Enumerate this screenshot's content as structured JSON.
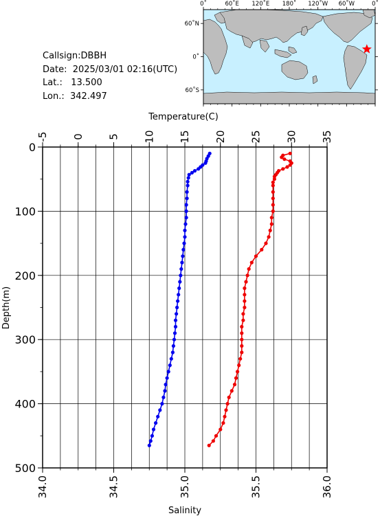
{
  "station": {
    "callsign_label": "Callsign:DBBH",
    "date_label": "Date:",
    "date_value": "2025/03/01 02:16(UTC)",
    "lat_label": "Lat.:",
    "lat_value": "13.500",
    "lon_label": "Lon.:",
    "lon_value": "342.497"
  },
  "map": {
    "lon_ticks": [
      "0˚",
      "60˚E",
      "120˚E",
      "180˚",
      "120˚W",
      "60˚W",
      "0˚"
    ],
    "lat_ticks": [
      "60˚N",
      "0˚",
      "60˚S"
    ],
    "ocean_color": "#c8f0ff",
    "land_color": "#bdbdbd",
    "marker": {
      "lon": 342.497,
      "lat": 13.5,
      "symbol": "star",
      "color": "#ff0000"
    }
  },
  "chart_data": {
    "type": "scatter",
    "ylabel": "Depth(m)",
    "ylim": [
      0,
      500
    ],
    "y_ticks": [
      "0",
      "100",
      "200",
      "300",
      "400",
      "500"
    ],
    "y_inverted": true,
    "top_axis": {
      "label": "Temperature(C)",
      "range": [
        -5,
        35
      ],
      "ticks": [
        "-5",
        "0",
        "5",
        "10",
        "15",
        "20",
        "25",
        "30",
        "35"
      ]
    },
    "bottom_axis": {
      "label": "Salinity",
      "range": [
        34.0,
        36.0
      ],
      "ticks": [
        "34.0",
        "34.5",
        "35.0",
        "35.5",
        "36.0"
      ]
    },
    "grid": true,
    "series": [
      {
        "axis": "temperature",
        "color": "#0000ee",
        "points": [
          [
            18.5,
            10
          ],
          [
            18.3,
            14
          ],
          [
            18.1,
            18
          ],
          [
            18.0,
            22
          ],
          [
            17.9,
            25
          ],
          [
            17.5,
            28
          ],
          [
            17.2,
            31
          ],
          [
            16.9,
            34
          ],
          [
            16.4,
            37
          ],
          [
            16.0,
            40
          ],
          [
            15.6,
            43
          ],
          [
            15.5,
            48
          ],
          [
            15.4,
            54
          ],
          [
            15.4,
            60
          ],
          [
            15.3,
            70
          ],
          [
            15.3,
            80
          ],
          [
            15.2,
            90
          ],
          [
            15.2,
            100
          ],
          [
            15.2,
            110
          ],
          [
            15.1,
            120
          ],
          [
            15.0,
            130
          ],
          [
            15.0,
            140
          ],
          [
            14.9,
            150
          ],
          [
            14.8,
            160
          ],
          [
            14.7,
            170
          ],
          [
            14.6,
            180
          ],
          [
            14.5,
            190
          ],
          [
            14.4,
            200
          ],
          [
            14.3,
            210
          ],
          [
            14.2,
            220
          ],
          [
            14.1,
            230
          ],
          [
            14.0,
            240
          ],
          [
            13.9,
            250
          ],
          [
            13.8,
            260
          ],
          [
            13.7,
            270
          ],
          [
            13.7,
            280
          ],
          [
            13.6,
            290
          ],
          [
            13.5,
            300
          ],
          [
            13.4,
            310
          ],
          [
            13.3,
            320
          ],
          [
            13.1,
            330
          ],
          [
            12.9,
            340
          ],
          [
            12.7,
            350
          ],
          [
            12.5,
            360
          ],
          [
            12.3,
            370
          ],
          [
            12.2,
            380
          ],
          [
            12.0,
            390
          ],
          [
            11.8,
            400
          ],
          [
            11.5,
            410
          ],
          [
            11.2,
            420
          ],
          [
            10.9,
            430
          ],
          [
            10.6,
            440
          ],
          [
            10.4,
            450
          ],
          [
            10.2,
            458
          ],
          [
            10.0,
            465
          ]
        ]
      },
      {
        "axis": "salinity",
        "color": "#ee0000",
        "points": [
          [
            35.74,
            10
          ],
          [
            35.69,
            13
          ],
          [
            35.68,
            16
          ],
          [
            35.7,
            19
          ],
          [
            35.74,
            22
          ],
          [
            35.75,
            25
          ],
          [
            35.74,
            28
          ],
          [
            35.72,
            31
          ],
          [
            35.69,
            34
          ],
          [
            35.66,
            37
          ],
          [
            35.65,
            40
          ],
          [
            35.64,
            43
          ],
          [
            35.63,
            46
          ],
          [
            35.63,
            50
          ],
          [
            35.62,
            55
          ],
          [
            35.62,
            60
          ],
          [
            35.62,
            70
          ],
          [
            35.62,
            80
          ],
          [
            35.62,
            90
          ],
          [
            35.62,
            100
          ],
          [
            35.61,
            110
          ],
          [
            35.61,
            120
          ],
          [
            35.6,
            130
          ],
          [
            35.59,
            140
          ],
          [
            35.57,
            150
          ],
          [
            35.54,
            160
          ],
          [
            35.5,
            170
          ],
          [
            35.47,
            180
          ],
          [
            35.45,
            190
          ],
          [
            35.44,
            200
          ],
          [
            35.43,
            210
          ],
          [
            35.42,
            220
          ],
          [
            35.42,
            230
          ],
          [
            35.42,
            240
          ],
          [
            35.42,
            250
          ],
          [
            35.41,
            260
          ],
          [
            35.41,
            270
          ],
          [
            35.4,
            280
          ],
          [
            35.4,
            290
          ],
          [
            35.4,
            300
          ],
          [
            35.4,
            310
          ],
          [
            35.4,
            320
          ],
          [
            35.39,
            330
          ],
          [
            35.38,
            340
          ],
          [
            35.37,
            350
          ],
          [
            35.36,
            360
          ],
          [
            35.35,
            370
          ],
          [
            35.33,
            380
          ],
          [
            35.31,
            390
          ],
          [
            35.3,
            400
          ],
          [
            35.29,
            410
          ],
          [
            35.28,
            420
          ],
          [
            35.27,
            430
          ],
          [
            35.25,
            440
          ],
          [
            35.22,
            450
          ],
          [
            35.2,
            458
          ],
          [
            35.17,
            465
          ]
        ]
      }
    ]
  }
}
